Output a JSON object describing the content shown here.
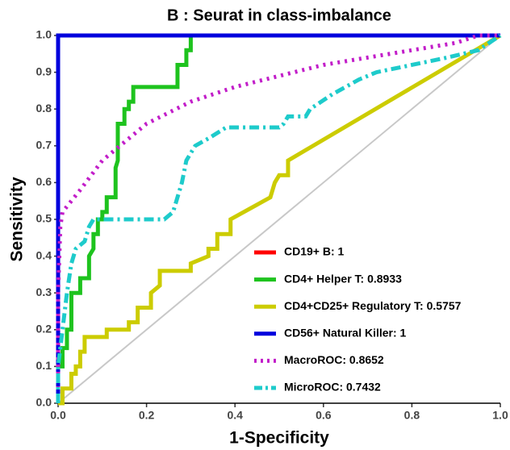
{
  "chart_data": {
    "type": "line",
    "title": "B : Seurat in class-imbalance",
    "x_label": "1-Specificity",
    "y_label": "Sensitivity",
    "xlim": [
      0,
      1
    ],
    "ylim": [
      0,
      1
    ],
    "xticks": [
      {
        "value": 0,
        "label": "0.0"
      },
      0.2,
      0.4,
      0.6,
      0.8,
      {
        "value": 1,
        "label": "1.0"
      }
    ],
    "yticks": [
      {
        "value": 0,
        "label": "0.0"
      },
      0.1,
      0.2,
      0.3,
      0.4,
      0.5,
      0.6,
      0.7,
      0.8,
      0.9,
      {
        "value": 1,
        "label": "1.0"
      }
    ],
    "diagonal": true,
    "legend": "lower right",
    "series": [
      {
        "name": "CD19+ B: 1",
        "color": "#ff0000",
        "style": "solid",
        "x": [
          0,
          0,
          1
        ],
        "values": [
          0,
          1,
          1
        ]
      },
      {
        "name": "CD4+ Helper T: 0.8933",
        "color": "#1ec31e",
        "style": "solid",
        "x": [
          0,
          0,
          0.01,
          0.01,
          0.02,
          0.02,
          0.03,
          0.03,
          0.05,
          0.05,
          0.07,
          0.07,
          0.08,
          0.08,
          0.09,
          0.09,
          0.1,
          0.1,
          0.11,
          0.11,
          0.13,
          0.13,
          0.135,
          0.135,
          0.15,
          0.15,
          0.16,
          0.16,
          0.17,
          0.17,
          0.27,
          0.27,
          0.29,
          0.29,
          0.3,
          0.3,
          1
        ],
        "values": [
          0,
          0.1,
          0.1,
          0.15,
          0.15,
          0.2,
          0.2,
          0.3,
          0.3,
          0.34,
          0.34,
          0.4,
          0.42,
          0.46,
          0.46,
          0.5,
          0.5,
          0.52,
          0.52,
          0.56,
          0.56,
          0.64,
          0.66,
          0.76,
          0.76,
          0.8,
          0.8,
          0.82,
          0.82,
          0.86,
          0.86,
          0.92,
          0.92,
          0.96,
          0.96,
          1,
          1
        ]
      },
      {
        "name": "CD4+CD25+ Regulatory T: 0.5757",
        "color": "#cccc00",
        "style": "solid",
        "x": [
          0,
          0.01,
          0.01,
          0.03,
          0.03,
          0.04,
          0.04,
          0.05,
          0.05,
          0.06,
          0.06,
          0.11,
          0.11,
          0.16,
          0.16,
          0.18,
          0.18,
          0.21,
          0.21,
          0.23,
          0.23,
          0.3,
          0.3,
          0.34,
          0.34,
          0.36,
          0.36,
          0.39,
          0.39,
          0.45,
          0.48,
          0.49,
          0.5,
          0.52,
          0.52,
          1
        ],
        "values": [
          0,
          0,
          0.04,
          0.04,
          0.08,
          0.08,
          0.1,
          0.1,
          0.14,
          0.14,
          0.18,
          0.18,
          0.2,
          0.2,
          0.22,
          0.22,
          0.26,
          0.26,
          0.3,
          0.32,
          0.36,
          0.36,
          0.38,
          0.4,
          0.42,
          0.42,
          0.46,
          0.46,
          0.5,
          0.54,
          0.56,
          0.6,
          0.62,
          0.62,
          0.66,
          1
        ]
      },
      {
        "name": "CD56+ Natural Killer: 1",
        "color": "#0000dd",
        "style": "solid",
        "x": [
          0,
          0,
          1
        ],
        "values": [
          0,
          1,
          1
        ]
      },
      {
        "name": "MacroROC: 0.8652",
        "color": "#c21ec9",
        "style": "dotted",
        "x": [
          0,
          0,
          0.005,
          0.01,
          0.05,
          0.1,
          0.15,
          0.2,
          0.3,
          0.4,
          0.5,
          0.6,
          0.7,
          0.8,
          0.9,
          0.95,
          1
        ],
        "values": [
          0,
          0.3,
          0.48,
          0.52,
          0.58,
          0.66,
          0.71,
          0.76,
          0.82,
          0.86,
          0.89,
          0.92,
          0.94,
          0.96,
          0.98,
          1,
          1
        ]
      },
      {
        "name": "MicroROC: 0.7432",
        "color": "#1ecbcb",
        "style": "dashdot",
        "x": [
          0,
          0,
          0.01,
          0.02,
          0.03,
          0.04,
          0.06,
          0.07,
          0.08,
          0.24,
          0.26,
          0.27,
          0.28,
          0.29,
          0.3,
          0.31,
          0.34,
          0.38,
          0.5,
          0.51,
          0.52,
          0.56,
          0.57,
          0.62,
          0.65,
          0.68,
          0.72,
          0.8,
          0.88,
          0.95,
          1
        ],
        "values": [
          0,
          0.1,
          0.2,
          0.3,
          0.38,
          0.42,
          0.44,
          0.48,
          0.5,
          0.5,
          0.52,
          0.56,
          0.6,
          0.66,
          0.68,
          0.7,
          0.72,
          0.75,
          0.75,
          0.76,
          0.78,
          0.78,
          0.8,
          0.84,
          0.86,
          0.88,
          0.9,
          0.92,
          0.94,
          0.96,
          1
        ]
      }
    ]
  }
}
